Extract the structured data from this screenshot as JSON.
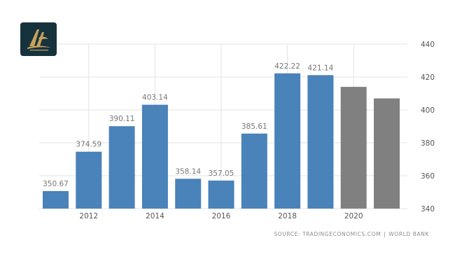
{
  "logo": {
    "name": "brand-logo",
    "colors": {
      "badge": "#16323d",
      "mark": "#c9a25a"
    }
  },
  "source": {
    "prefix": "SOURCE: ",
    "main": "TRADINGECONOMICS.COM",
    "separator": "|",
    "secondary": "WORLD BANK"
  },
  "colors": {
    "actual": "#4a82ba",
    "forecast": "#808080",
    "grid": "#e3e3e3",
    "label": "#777777",
    "tick": "#555555"
  },
  "chart_data": {
    "type": "bar",
    "categories": [
      "2011",
      "2012",
      "2013",
      "2014",
      "2015",
      "2016",
      "2017",
      "2018",
      "2019",
      "2020",
      "2021"
    ],
    "x_tick_labels": [
      "2012",
      "2014",
      "2016",
      "2018",
      "2020"
    ],
    "series": [
      {
        "values": [
          350.67,
          374.59,
          390.11,
          403.14,
          358.14,
          357.05,
          385.61,
          422.22,
          421.14,
          null,
          null
        ]
      },
      {
        "values": [
          null,
          null,
          null,
          null,
          null,
          null,
          null,
          null,
          null,
          414,
          407
        ]
      }
    ],
    "data_labels": [
      "350.67",
      "374.59",
      "390.11",
      "403.14",
      "358.14",
      "357.05",
      "385.61",
      "422.22",
      "421.14",
      "",
      ""
    ],
    "y_ticks": [
      340,
      360,
      380,
      400,
      420,
      440
    ],
    "ylim": [
      340,
      440
    ],
    "y_axis_side": "right",
    "grid": true,
    "title": "",
    "xlabel": "",
    "ylabel": ""
  }
}
